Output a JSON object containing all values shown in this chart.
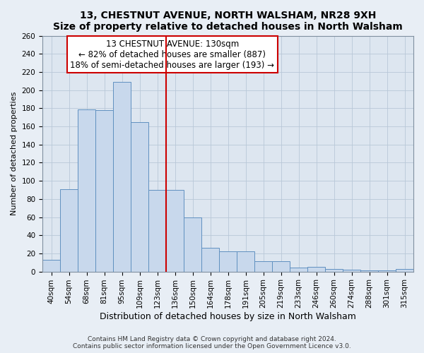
{
  "title": "13, CHESTNUT AVENUE, NORTH WALSHAM, NR28 9XH",
  "subtitle": "Size of property relative to detached houses in North Walsham",
  "xlabel": "Distribution of detached houses by size in North Walsham",
  "ylabel": "Number of detached properties",
  "bar_labels": [
    "40sqm",
    "54sqm",
    "68sqm",
    "81sqm",
    "95sqm",
    "109sqm",
    "123sqm",
    "136sqm",
    "150sqm",
    "164sqm",
    "178sqm",
    "191sqm",
    "205sqm",
    "219sqm",
    "233sqm",
    "246sqm",
    "260sqm",
    "274sqm",
    "288sqm",
    "301sqm",
    "315sqm"
  ],
  "bar_values": [
    13,
    91,
    179,
    178,
    209,
    165,
    90,
    90,
    60,
    26,
    22,
    22,
    11,
    11,
    4,
    5,
    3,
    2,
    1,
    1,
    3
  ],
  "bar_color": "#c8d8ec",
  "bar_edge_color": "#6090c0",
  "property_line_label": "13 CHESTNUT AVENUE: 130sqm",
  "annotation_line1": "← 82% of detached houses are smaller (887)",
  "annotation_line2": "18% of semi-detached houses are larger (193) →",
  "vline_index": 7,
  "vline_color": "#cc0000",
  "annotation_box_edge": "#cc0000",
  "ylim": [
    0,
    260
  ],
  "yticks": [
    0,
    20,
    40,
    60,
    80,
    100,
    120,
    140,
    160,
    180,
    200,
    220,
    240,
    260
  ],
  "footer_line1": "Contains HM Land Registry data © Crown copyright and database right 2024.",
  "footer_line2": "Contains public sector information licensed under the Open Government Licence v3.0.",
  "bg_color": "#e8eef5",
  "plot_bg_color": "#dde6f0",
  "title_fontsize": 10,
  "subtitle_fontsize": 9,
  "ylabel_fontsize": 8,
  "xlabel_fontsize": 9,
  "tick_fontsize": 7.5,
  "annotation_fontsize": 8.5,
  "footer_fontsize": 6.5
}
